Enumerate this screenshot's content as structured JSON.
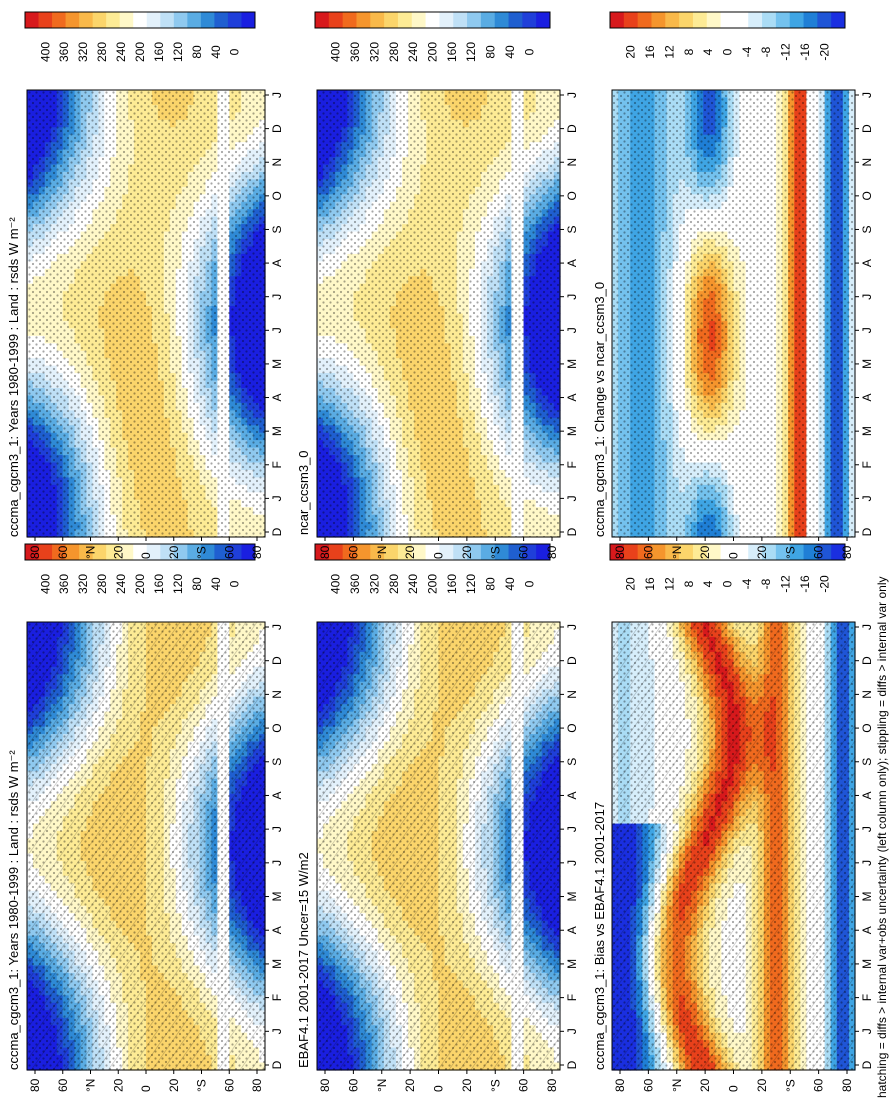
{
  "figure_note": "hatching = diffs > internal var+obs uncertainty (left column only); stippling = diffs > internal var only",
  "colorbar_abs": {
    "labels": [
      "400",
      "360",
      "320",
      "280",
      "240",
      "200",
      "160",
      "120",
      "80",
      "40",
      "0"
    ],
    "colors": [
      "#d7191c",
      "#e8411b",
      "#f06a1e",
      "#f5952d",
      "#f9b94a",
      "#fbd56b",
      "#fdeb95",
      "#fff8c8",
      "#ffffff",
      "#e3f1fb",
      "#bfe0f6",
      "#8fc9ef",
      "#5aace3",
      "#2f8ad6",
      "#1f5fd0",
      "#1f3fd9",
      "#1a1fe0"
    ]
  },
  "colorbar_diff": {
    "labels": [
      "20",
      "16",
      "12",
      "8",
      "4",
      "0",
      "-4",
      "-8",
      "-12",
      "-16",
      "-20"
    ],
    "colors": [
      "#d7191c",
      "#e8411b",
      "#f06a1e",
      "#f5952d",
      "#f9b94a",
      "#fbd56b",
      "#fdeb95",
      "#fff8c8",
      "#ffffff",
      "#ffffff",
      "#d7eefb",
      "#aadcf5",
      "#74c2ee",
      "#3fa5e4",
      "#1f7fd6",
      "#1f55d6",
      "#1a2fe0"
    ]
  },
  "axes": {
    "months": [
      "D",
      "J",
      "F",
      "M",
      "A",
      "M",
      "J",
      "J",
      "A",
      "S",
      "O",
      "N",
      "D",
      "J"
    ],
    "lat_ticks": [
      "80",
      "60",
      "°N",
      "20",
      "0",
      "20",
      "°S",
      "60",
      "80"
    ]
  },
  "chart_data": [
    {
      "type": "heatmap",
      "panel": "top-left",
      "title": "cccma_cgcm3_1: Years 1980-1999 : Land : rsds W m⁻²",
      "colorbar": "abs",
      "hatched": true,
      "stippled": true,
      "zlim": [
        0,
        400
      ]
    },
    {
      "type": "heatmap",
      "panel": "top-right",
      "title": "cccma_cgcm3_1: Years 1980-1999 : Land : rsds W m⁻²",
      "colorbar": "abs",
      "hatched": false,
      "stippled": true,
      "zlim": [
        0,
        400
      ]
    },
    {
      "type": "heatmap",
      "panel": "middle-left",
      "title": "EBAF4.1 2001-2017 Uncer=15 W/m2",
      "colorbar": "abs",
      "hatched": true,
      "stippled": true,
      "zlim": [
        0,
        400
      ]
    },
    {
      "type": "heatmap",
      "panel": "middle-right",
      "title": "ncar_ccsm3_0",
      "colorbar": "abs",
      "hatched": false,
      "stippled": true,
      "zlim": [
        0,
        400
      ]
    },
    {
      "type": "heatmap",
      "panel": "bottom-left",
      "title": "cccma_cgcm3_1: Bias vs EBAF4.1 2001-2017",
      "colorbar": "diff",
      "hatched": true,
      "stippled": true,
      "zlim": [
        -20,
        20
      ]
    },
    {
      "type": "heatmap",
      "panel": "bottom-right",
      "title": "cccma_cgcm3_1: Change vs ncar_ccsm3_0",
      "colorbar": "diff",
      "hatched": false,
      "stippled": true,
      "zlim": [
        -20,
        20
      ]
    }
  ]
}
